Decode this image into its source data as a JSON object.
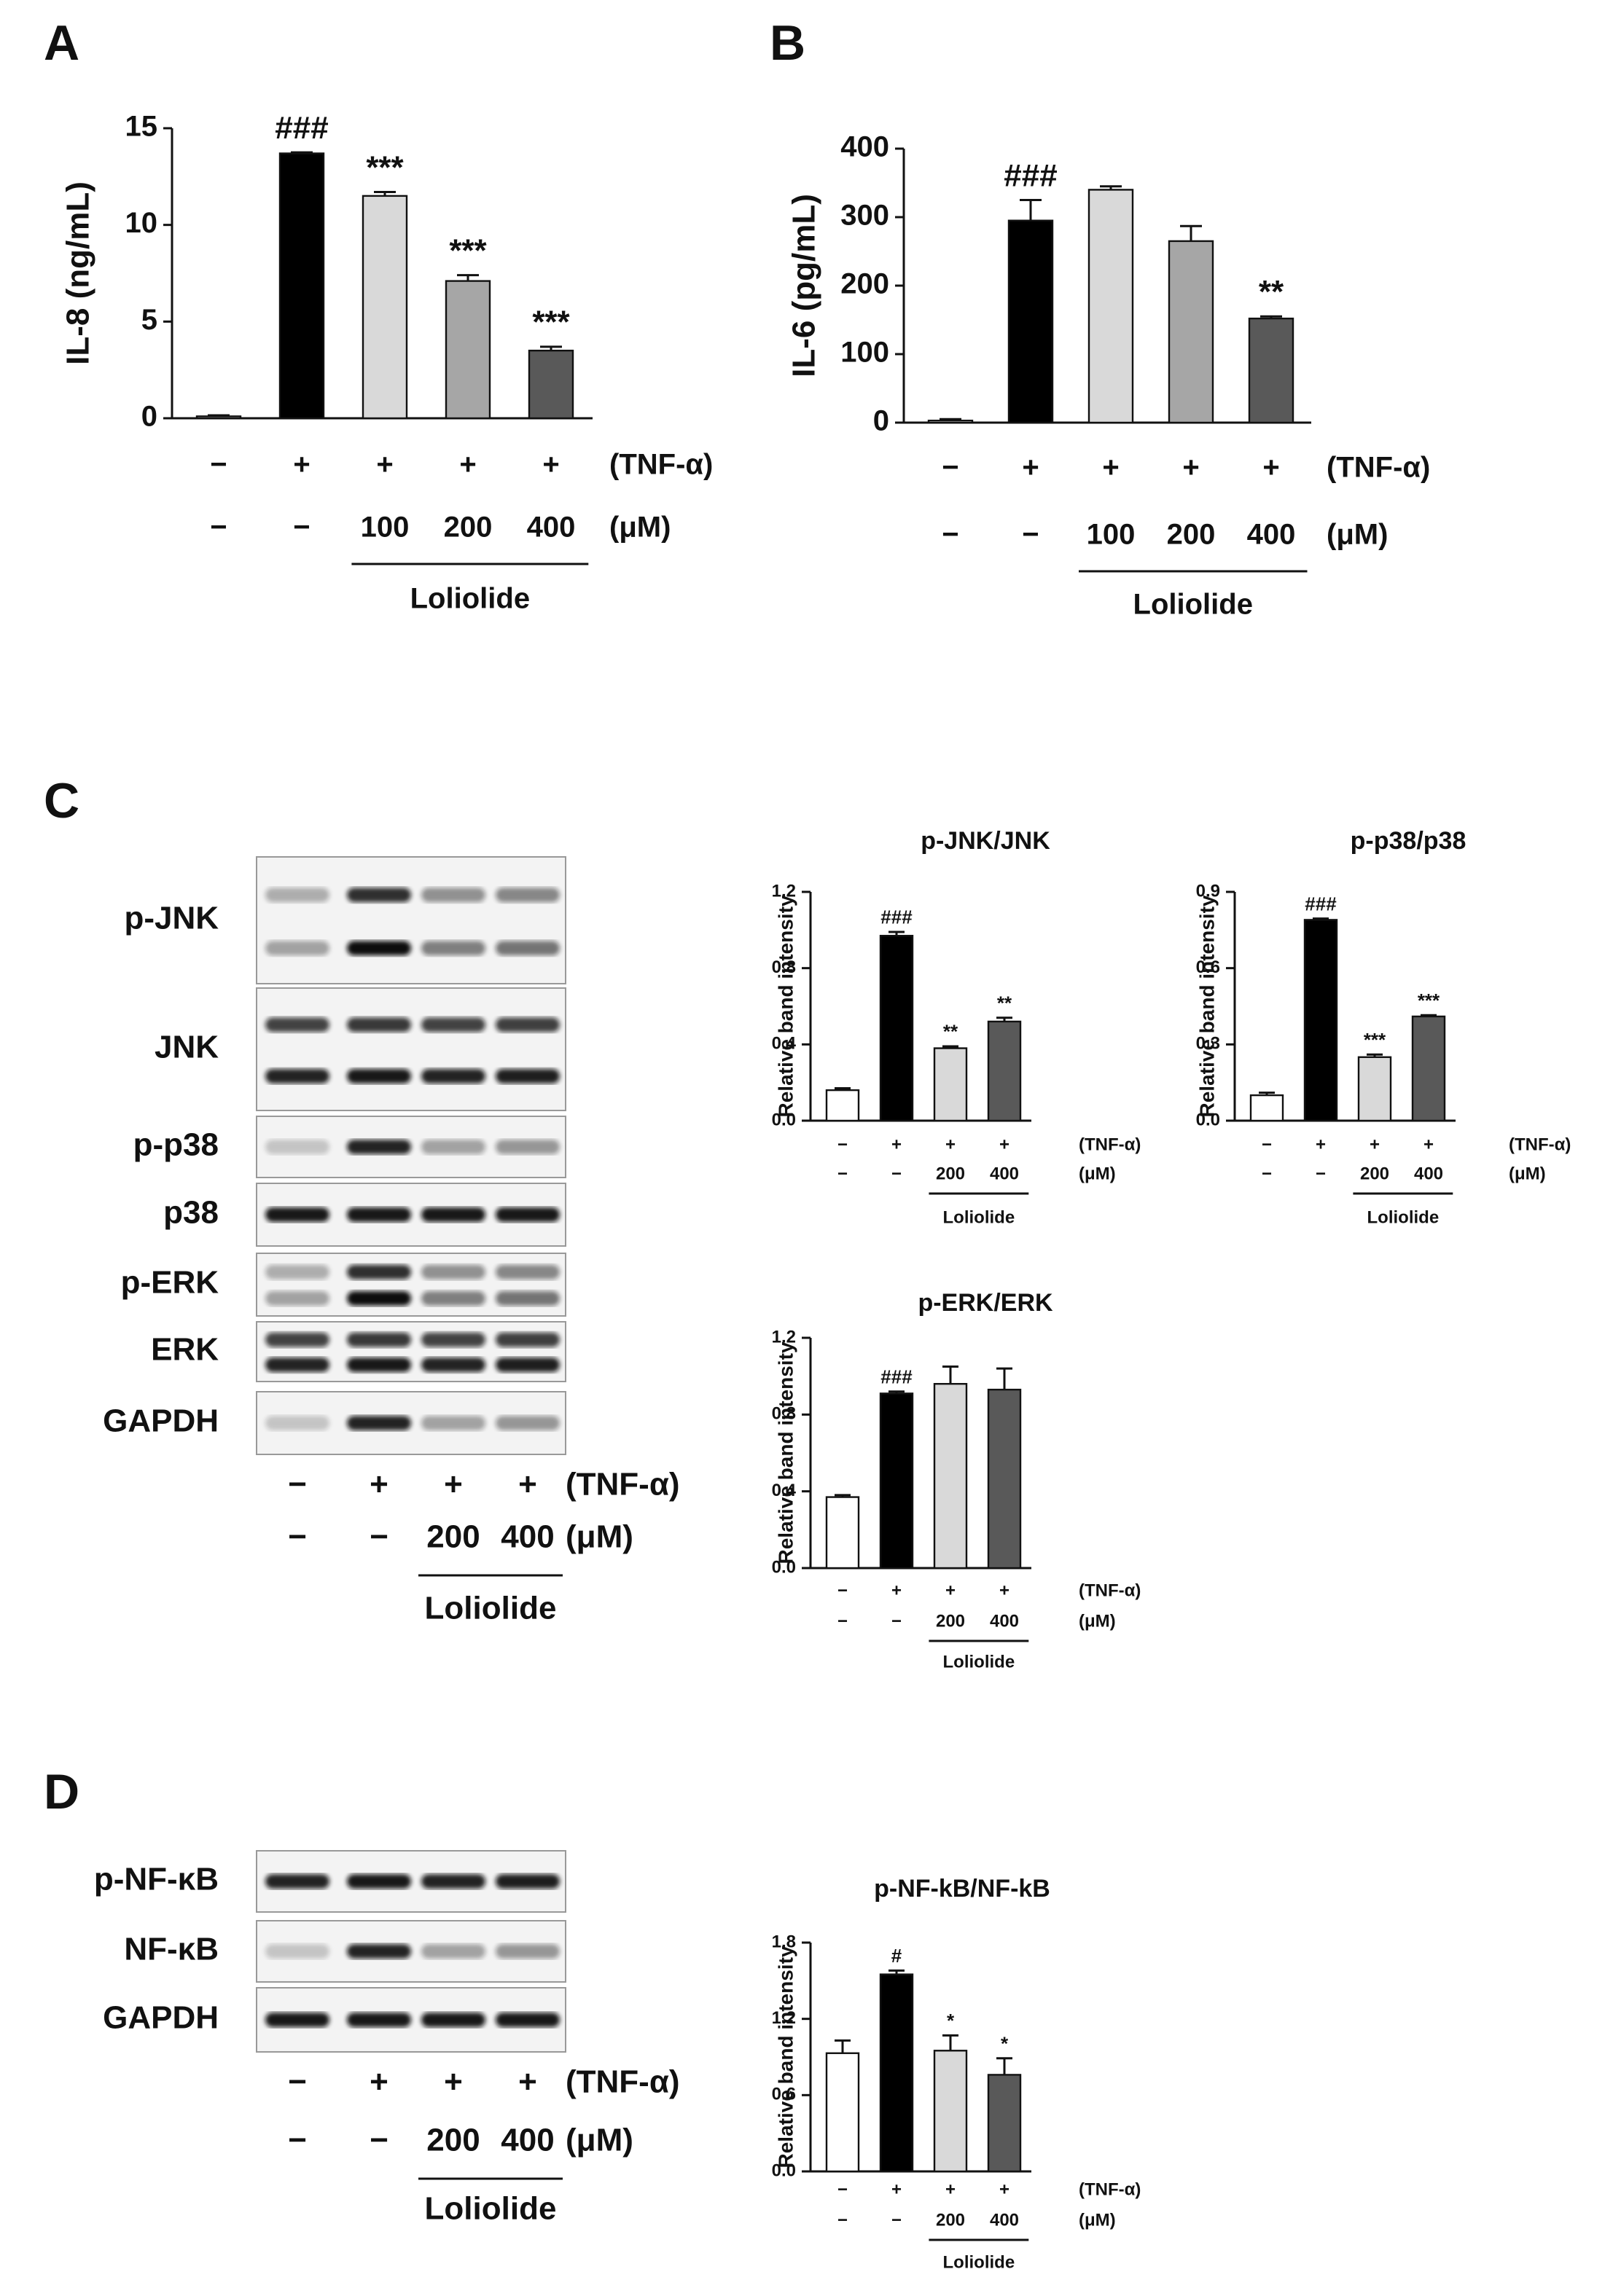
{
  "panel_labels": [
    "A",
    "B",
    "C",
    "D"
  ],
  "blots": [
    {
      "rows": [
        "p-JNK",
        "JNK",
        "p-p38",
        "p38",
        "p-ERK",
        "ERK",
        "GAPDH"
      ],
      "tnf": [
        "−",
        "+",
        "+",
        "+"
      ],
      "tnf_label": "(TNF-α)",
      "dose": [
        "−",
        "−",
        "200",
        "400"
      ],
      "dose_label": "(μM)",
      "group": "Loliolide"
    },
    {
      "rows": [
        "p-NF-κB",
        "NF-κB",
        "GAPDH"
      ],
      "tnf": [
        "−",
        "+",
        "+",
        "+"
      ],
      "tnf_label": "(TNF-α)",
      "dose": [
        "−",
        "−",
        "200",
        "400"
      ],
      "dose_label": "(μM)",
      "group": "Loliolide"
    }
  ],
  "chart_data": [
    {
      "type": "bar",
      "ylabel": "IL-8 (ng/mL)",
      "values": [
        0.1,
        13.7,
        11.5,
        7.1,
        3.5
      ],
      "errors": [
        0.05,
        0.05,
        0.2,
        0.3,
        0.2
      ],
      "colors": [
        "#ffffff",
        "#000000",
        "#d9d9d9",
        "#a6a6a6",
        "#595959"
      ],
      "annotations": [
        null,
        "###",
        "***",
        "***",
        "***"
      ],
      "ylim": [
        0,
        15
      ],
      "yticks": [
        0,
        5,
        10,
        15
      ],
      "tnf": [
        "−",
        "+",
        "+",
        "+",
        "+"
      ],
      "tnf_label": "(TNF-α)",
      "dose": [
        "−",
        "−",
        "100",
        "200",
        "400"
      ],
      "dose_label": "(μM)",
      "group": "Loliolide"
    },
    {
      "type": "bar",
      "ylabel": "IL-6 (pg/mL)",
      "values": [
        3,
        295,
        340,
        265,
        152
      ],
      "errors": [
        2,
        30,
        5,
        22,
        3
      ],
      "colors": [
        "#ffffff",
        "#000000",
        "#d9d9d9",
        "#a6a6a6",
        "#595959"
      ],
      "annotations": [
        null,
        "###",
        null,
        null,
        "**"
      ],
      "ylim": [
        0,
        400
      ],
      "yticks": [
        0,
        100,
        200,
        300,
        400
      ],
      "tnf": [
        "−",
        "+",
        "+",
        "+",
        "+"
      ],
      "tnf_label": "(TNF-α)",
      "dose": [
        "−",
        "−",
        "100",
        "200",
        "400"
      ],
      "dose_label": "(μM)",
      "group": "Loliolide"
    },
    {
      "type": "bar",
      "title": "p-JNK/JNK",
      "ylabel": "Relative band intensity",
      "values": [
        0.16,
        0.97,
        0.38,
        0.52
      ],
      "errors": [
        0.01,
        0.02,
        0.01,
        0.02
      ],
      "colors": [
        "#ffffff",
        "#000000",
        "#d9d9d9",
        "#595959"
      ],
      "annotations": [
        null,
        "###",
        "**",
        "**"
      ],
      "ylim": [
        0,
        1.2
      ],
      "yticks": [
        {
          "value": 0,
          "label": "0.0"
        },
        0.4,
        0.8,
        1.2
      ],
      "tnf": [
        "−",
        "+",
        "+",
        "+"
      ],
      "tnf_label": "(TNF-α)",
      "dose": [
        "−",
        "−",
        "200",
        "400"
      ],
      "dose_label": "(μM)",
      "group": "Loliolide"
    },
    {
      "type": "bar",
      "title": "p-p38/p38",
      "ylabel": "Relative band intensity",
      "values": [
        0.1,
        0.79,
        0.25,
        0.41
      ],
      "errors": [
        0.01,
        0.005,
        0.01,
        0.005
      ],
      "colors": [
        "#ffffff",
        "#000000",
        "#d9d9d9",
        "#595959"
      ],
      "annotations": [
        null,
        "###",
        "***",
        "***"
      ],
      "ylim": [
        0,
        0.9
      ],
      "yticks": [
        {
          "value": 0,
          "label": "0.0"
        },
        0.3,
        0.6,
        0.9
      ],
      "tnf": [
        "−",
        "+",
        "+",
        "+"
      ],
      "tnf_label": "(TNF-α)",
      "dose": [
        "−",
        "−",
        "200",
        "400"
      ],
      "dose_label": "(μM)",
      "group": "Loliolide"
    },
    {
      "type": "bar",
      "title": "p-ERK/ERK",
      "ylabel": "Relative band intensity",
      "values": [
        0.37,
        0.91,
        0.96,
        0.93
      ],
      "errors": [
        0.01,
        0.01,
        0.09,
        0.11
      ],
      "colors": [
        "#ffffff",
        "#000000",
        "#d9d9d9",
        "#595959"
      ],
      "annotations": [
        null,
        "###",
        null,
        null
      ],
      "ylim": [
        0,
        1.2
      ],
      "yticks": [
        {
          "value": 0,
          "label": "0.0"
        },
        0.4,
        0.8,
        1.2
      ],
      "tnf": [
        "−",
        "+",
        "+",
        "+"
      ],
      "tnf_label": "(TNF-α)",
      "dose": [
        "−",
        "−",
        "200",
        "400"
      ],
      "dose_label": "(μM)",
      "group": "Loliolide"
    },
    {
      "type": "bar",
      "title": "p-NF-kB/NF-kB",
      "ylabel": "Relative band intensity",
      "values": [
        0.93,
        1.55,
        0.95,
        0.76
      ],
      "errors": [
        0.1,
        0.03,
        0.12,
        0.13
      ],
      "colors": [
        "#ffffff",
        "#000000",
        "#d9d9d9",
        "#595959"
      ],
      "annotations": [
        null,
        "#",
        "*",
        "*"
      ],
      "ylim": [
        0,
        1.8
      ],
      "yticks": [
        {
          "value": 0,
          "label": "0.0"
        },
        0.6,
        1.2,
        1.8
      ],
      "tnf": [
        "−",
        "+",
        "+",
        "+"
      ],
      "tnf_label": "(TNF-α)",
      "dose": [
        "−",
        "−",
        "200",
        "400"
      ],
      "dose_label": "(μM)",
      "group": "Loliolide"
    }
  ]
}
